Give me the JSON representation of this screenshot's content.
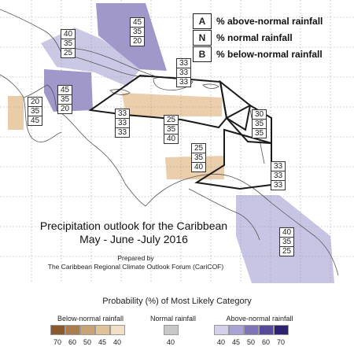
{
  "map": {
    "boxes": [
      {
        "values": [
          "45",
          "35",
          "20"
        ]
      },
      {
        "values": [
          "40",
          "35",
          "25"
        ]
      },
      {
        "values": [
          "33",
          "33",
          "33"
        ]
      },
      {
        "values": [
          "45",
          "35",
          "20"
        ]
      },
      {
        "values": [
          "20",
          "35",
          "45"
        ]
      },
      {
        "values": [
          "33",
          "33",
          "33"
        ]
      },
      {
        "values": [
          "25",
          "35",
          "40"
        ]
      },
      {
        "values": [
          "30",
          "35",
          "35"
        ]
      },
      {
        "values": [
          "25",
          "35",
          "40"
        ]
      },
      {
        "values": [
          "33",
          "33",
          "33"
        ]
      },
      {
        "values": [
          "40",
          "35",
          "25"
        ]
      }
    ],
    "colors": {
      "above": "#8f86c2",
      "above_light": "#c5c2e3",
      "below": "#e9c9a3",
      "grid": "#9a9a9a",
      "coast": "#555555",
      "outline": "#1a1a1a"
    }
  },
  "legend": {
    "entries": [
      {
        "letter": "A",
        "text": "% above-normal rainfall"
      },
      {
        "letter": "N",
        "text": "% normal rainfall"
      },
      {
        "letter": "B",
        "text": "% below-normal rainfall"
      }
    ]
  },
  "title": {
    "line1": "Precipitation outlook for the Caribbean",
    "line2": "May - June -July 2016"
  },
  "credit": {
    "line1": "Prepared by",
    "line2": "The Caribbean Regional Climate Outlook Forum (CariCOF)"
  },
  "scale": {
    "title": "Probability (%) of Most Likely Category",
    "below": {
      "label": "Below-normal rainfall",
      "ticks": [
        "70",
        "60",
        "50",
        "45",
        "40"
      ],
      "colors": [
        "#8a5a2b",
        "#a97d4e",
        "#c9a275",
        "#dfc29a",
        "#f2e0c6"
      ]
    },
    "normal": {
      "label": "Normal rainfall",
      "ticks": [
        "40"
      ],
      "colors": [
        "#c8c8c8"
      ]
    },
    "above": {
      "label": "Above-normal rainfall",
      "ticks": [
        "40",
        "45",
        "50",
        "60",
        "70"
      ],
      "colors": [
        "#d4d0ea",
        "#a9a2d4",
        "#7f74b8",
        "#574b99",
        "#2c2272"
      ]
    }
  }
}
